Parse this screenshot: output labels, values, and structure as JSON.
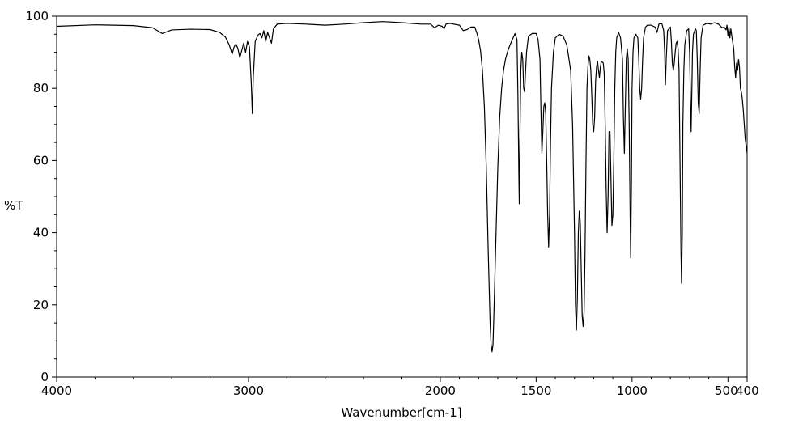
{
  "chart_data": {
    "type": "line",
    "title": "",
    "xlabel": "Wavenumber[cm-1]",
    "ylabel": "%T",
    "xlim": [
      4000,
      400
    ],
    "ylim": [
      0,
      100
    ],
    "grid": false,
    "x_tick_labels": [
      "4000",
      "3000",
      "2000",
      "1500",
      "1000",
      "500",
      "400"
    ],
    "y_tick_labels": [
      "0",
      "20",
      "40",
      "60",
      "80",
      "100"
    ],
    "x_ticks": [
      4000,
      3000,
      2000,
      1500,
      1000,
      500,
      400
    ],
    "y_ticks": [
      0,
      20,
      40,
      60,
      80,
      100
    ],
    "line_color": "#000000",
    "series": [
      {
        "points": [
          [
            4000,
            97.2
          ],
          [
            3800,
            97.6
          ],
          [
            3600,
            97.4
          ],
          [
            3500,
            96.8
          ],
          [
            3450,
            95.2
          ],
          [
            3400,
            96.2
          ],
          [
            3300,
            96.4
          ],
          [
            3200,
            96.3
          ],
          [
            3150,
            95.5
          ],
          [
            3120,
            94.2
          ],
          [
            3100,
            92
          ],
          [
            3085,
            89.5
          ],
          [
            3075,
            91.5
          ],
          [
            3065,
            92.3
          ],
          [
            3055,
            91
          ],
          [
            3045,
            88.5
          ],
          [
            3035,
            90.5
          ],
          [
            3025,
            92.5
          ],
          [
            3015,
            90
          ],
          [
            3005,
            93
          ],
          [
            2995,
            91.5
          ],
          [
            2985,
            81
          ],
          [
            2980,
            73
          ],
          [
            2975,
            83
          ],
          [
            2965,
            93
          ],
          [
            2950,
            94.8
          ],
          [
            2940,
            95.2
          ],
          [
            2930,
            94
          ],
          [
            2920,
            96
          ],
          [
            2910,
            93
          ],
          [
            2900,
            95.5
          ],
          [
            2880,
            92.5
          ],
          [
            2870,
            96.5
          ],
          [
            2850,
            97.8
          ],
          [
            2800,
            98
          ],
          [
            2700,
            97.8
          ],
          [
            2600,
            97.5
          ],
          [
            2500,
            97.8
          ],
          [
            2400,
            98.2
          ],
          [
            2300,
            98.5
          ],
          [
            2200,
            98.2
          ],
          [
            2100,
            97.8
          ],
          [
            2050,
            97.8
          ],
          [
            2030,
            96.8
          ],
          [
            2010,
            97.5
          ],
          [
            1990,
            97.2
          ],
          [
            1980,
            96.5
          ],
          [
            1970,
            97.8
          ],
          [
            1950,
            98
          ],
          [
            1900,
            97.5
          ],
          [
            1880,
            96
          ],
          [
            1860,
            96.3
          ],
          [
            1840,
            97
          ],
          [
            1820,
            97
          ],
          [
            1810,
            95.5
          ],
          [
            1800,
            93.5
          ],
          [
            1790,
            90.5
          ],
          [
            1780,
            85
          ],
          [
            1770,
            75
          ],
          [
            1760,
            58
          ],
          [
            1750,
            35
          ],
          [
            1740,
            15
          ],
          [
            1735,
            9
          ],
          [
            1730,
            7
          ],
          [
            1725,
            9
          ],
          [
            1720,
            18
          ],
          [
            1710,
            38
          ],
          [
            1700,
            58
          ],
          [
            1690,
            72
          ],
          [
            1680,
            80
          ],
          [
            1670,
            85
          ],
          [
            1660,
            88
          ],
          [
            1650,
            90
          ],
          [
            1640,
            91.5
          ],
          [
            1630,
            92.8
          ],
          [
            1620,
            94
          ],
          [
            1610,
            95.2
          ],
          [
            1600,
            93.5
          ],
          [
            1595,
            78
          ],
          [
            1590,
            55
          ],
          [
            1588,
            48
          ],
          [
            1585,
            65
          ],
          [
            1580,
            85
          ],
          [
            1575,
            90
          ],
          [
            1570,
            88
          ],
          [
            1565,
            80
          ],
          [
            1560,
            79
          ],
          [
            1555,
            85
          ],
          [
            1550,
            90
          ],
          [
            1540,
            94.5
          ],
          [
            1520,
            95.2
          ],
          [
            1500,
            95.2
          ],
          [
            1490,
            93.5
          ],
          [
            1480,
            88
          ],
          [
            1475,
            74
          ],
          [
            1470,
            62
          ],
          [
            1465,
            68
          ],
          [
            1460,
            75
          ],
          [
            1455,
            76
          ],
          [
            1450,
            73
          ],
          [
            1445,
            60
          ],
          [
            1440,
            45
          ],
          [
            1435,
            36
          ],
          [
            1430,
            45
          ],
          [
            1425,
            65
          ],
          [
            1420,
            80
          ],
          [
            1410,
            90
          ],
          [
            1400,
            94
          ],
          [
            1380,
            95
          ],
          [
            1360,
            94.5
          ],
          [
            1340,
            92
          ],
          [
            1320,
            85
          ],
          [
            1310,
            70
          ],
          [
            1300,
            40
          ],
          [
            1295,
            20
          ],
          [
            1290,
            13
          ],
          [
            1285,
            22
          ],
          [
            1280,
            40
          ],
          [
            1275,
            46
          ],
          [
            1270,
            43
          ],
          [
            1265,
            30
          ],
          [
            1260,
            17
          ],
          [
            1255,
            14
          ],
          [
            1250,
            18
          ],
          [
            1245,
            35
          ],
          [
            1240,
            60
          ],
          [
            1235,
            80
          ],
          [
            1230,
            86
          ],
          [
            1225,
            89
          ],
          [
            1220,
            88
          ],
          [
            1215,
            85
          ],
          [
            1210,
            78
          ],
          [
            1205,
            70
          ],
          [
            1200,
            68
          ],
          [
            1195,
            72
          ],
          [
            1190,
            82
          ],
          [
            1185,
            86
          ],
          [
            1180,
            87.5
          ],
          [
            1175,
            85
          ],
          [
            1170,
            83
          ],
          [
            1165,
            86
          ],
          [
            1160,
            87.5
          ],
          [
            1150,
            87
          ],
          [
            1145,
            84
          ],
          [
            1140,
            70
          ],
          [
            1135,
            52
          ],
          [
            1130,
            40
          ],
          [
            1125,
            50
          ],
          [
            1120,
            68
          ],
          [
            1115,
            68
          ],
          [
            1110,
            55
          ],
          [
            1105,
            42
          ],
          [
            1100,
            45
          ],
          [
            1095,
            60
          ],
          [
            1090,
            80
          ],
          [
            1085,
            90
          ],
          [
            1080,
            94
          ],
          [
            1070,
            95.5
          ],
          [
            1060,
            94
          ],
          [
            1050,
            88
          ],
          [
            1045,
            72
          ],
          [
            1040,
            62
          ],
          [
            1035,
            75
          ],
          [
            1030,
            88
          ],
          [
            1025,
            91
          ],
          [
            1020,
            88
          ],
          [
            1015,
            70
          ],
          [
            1010,
            45
          ],
          [
            1007,
            33
          ],
          [
            1003,
            55
          ],
          [
            1000,
            80
          ],
          [
            995,
            90
          ],
          [
            990,
            94
          ],
          [
            980,
            95
          ],
          [
            970,
            94
          ],
          [
            965,
            88
          ],
          [
            960,
            80
          ],
          [
            955,
            77
          ],
          [
            950,
            80
          ],
          [
            945,
            88
          ],
          [
            940,
            94
          ],
          [
            930,
            97
          ],
          [
            920,
            97.5
          ],
          [
            900,
            97.5
          ],
          [
            880,
            97
          ],
          [
            870,
            95.5
          ],
          [
            860,
            97.8
          ],
          [
            845,
            98
          ],
          [
            835,
            96
          ],
          [
            830,
            90
          ],
          [
            826,
            81
          ],
          [
            822,
            88
          ],
          [
            815,
            96
          ],
          [
            800,
            97
          ],
          [
            795,
            93
          ],
          [
            790,
            87
          ],
          [
            785,
            85
          ],
          [
            780,
            87
          ],
          [
            775,
            90
          ],
          [
            770,
            92.5
          ],
          [
            765,
            93
          ],
          [
            760,
            91
          ],
          [
            755,
            85
          ],
          [
            750,
            60
          ],
          [
            745,
            35
          ],
          [
            742,
            26
          ],
          [
            738,
            40
          ],
          [
            735,
            70
          ],
          [
            730,
            85
          ],
          [
            725,
            92
          ],
          [
            715,
            96
          ],
          [
            705,
            96.5
          ],
          [
            700,
            90
          ],
          [
            695,
            75
          ],
          [
            692,
            68
          ],
          [
            688,
            80
          ],
          [
            685,
            90
          ],
          [
            680,
            95
          ],
          [
            670,
            96.5
          ],
          [
            665,
            96
          ],
          [
            660,
            88
          ],
          [
            655,
            76
          ],
          [
            650,
            73
          ],
          [
            645,
            85
          ],
          [
            640,
            94
          ],
          [
            630,
            97.5
          ],
          [
            610,
            98
          ],
          [
            590,
            97.8
          ],
          [
            570,
            98.2
          ],
          [
            550,
            97.8
          ],
          [
            530,
            96.8
          ],
          [
            520,
            97
          ],
          [
            510,
            96.2
          ],
          [
            505,
            97.5
          ],
          [
            500,
            94.5
          ],
          [
            495,
            97
          ],
          [
            490,
            94
          ],
          [
            485,
            96.5
          ],
          [
            480,
            94.5
          ],
          [
            470,
            91
          ],
          [
            465,
            86
          ],
          [
            460,
            83
          ],
          [
            455,
            87
          ],
          [
            450,
            85
          ],
          [
            445,
            88
          ],
          [
            440,
            86
          ],
          [
            435,
            80
          ],
          [
            430,
            79
          ],
          [
            425,
            77
          ],
          [
            420,
            74
          ],
          [
            415,
            70
          ],
          [
            410,
            66
          ],
          [
            405,
            64
          ],
          [
            400,
            62
          ]
        ]
      }
    ]
  }
}
